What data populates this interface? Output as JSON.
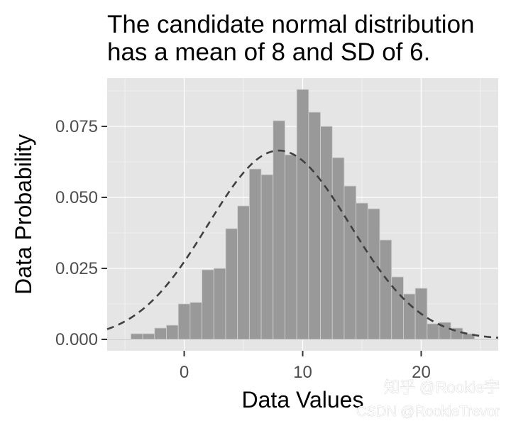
{
  "chart_data": {
    "type": "bar",
    "title_lines": [
      "The candidate normal distribution",
      "has a mean of 8 and SD of 6."
    ],
    "xlabel": "Data Values",
    "ylabel": "Data Probability",
    "xlim": [
      -6.5,
      26.5
    ],
    "ylim": [
      -0.004,
      0.092
    ],
    "x_ticks": [
      0,
      10,
      20
    ],
    "x_tick_labels": [
      "0",
      "10",
      "20"
    ],
    "y_ticks": [
      0.0,
      0.025,
      0.05,
      0.075
    ],
    "y_tick_labels": [
      "0.000",
      "0.025",
      "0.050",
      "0.075"
    ],
    "grid": true,
    "bin_width": 1,
    "bins": [
      {
        "x": -6,
        "y": 0.0
      },
      {
        "x": -5,
        "y": 0.0
      },
      {
        "x": -4,
        "y": 0.002
      },
      {
        "x": -3,
        "y": 0.002
      },
      {
        "x": -2,
        "y": 0.004
      },
      {
        "x": -1,
        "y": 0.005
      },
      {
        "x": 0,
        "y": 0.0125
      },
      {
        "x": 1,
        "y": 0.013
      },
      {
        "x": 2,
        "y": 0.0245
      },
      {
        "x": 3,
        "y": 0.025
      },
      {
        "x": 4,
        "y": 0.039
      },
      {
        "x": 5,
        "y": 0.047
      },
      {
        "x": 6,
        "y": 0.06
      },
      {
        "x": 7,
        "y": 0.058
      },
      {
        "x": 8,
        "y": 0.077
      },
      {
        "x": 9,
        "y": 0.065
      },
      {
        "x": 10,
        "y": 0.088
      },
      {
        "x": 11,
        "y": 0.08
      },
      {
        "x": 12,
        "y": 0.075
      },
      {
        "x": 13,
        "y": 0.064
      },
      {
        "x": 14,
        "y": 0.054
      },
      {
        "x": 15,
        "y": 0.048
      },
      {
        "x": 16,
        "y": 0.046
      },
      {
        "x": 17,
        "y": 0.035
      },
      {
        "x": 18,
        "y": 0.022
      },
      {
        "x": 19,
        "y": 0.016
      },
      {
        "x": 20,
        "y": 0.018
      },
      {
        "x": 21,
        "y": 0.0055
      },
      {
        "x": 22,
        "y": 0.006
      },
      {
        "x": 23,
        "y": 0.004
      },
      {
        "x": 24,
        "y": 0.002
      },
      {
        "x": 25,
        "y": 0.0
      },
      {
        "x": 26,
        "y": 0.0
      }
    ],
    "curve": {
      "distribution": "normal",
      "mean": 8,
      "sd": 6,
      "line_style": "dashed"
    }
  },
  "watermark": {
    "line1": "知乎 @Rookie宇",
    "line2": "CSDN @RookieTrevor"
  },
  "colors": {
    "panel_background": "#e5e5e5",
    "grid": "#ffffff",
    "bar_fill": "#999999",
    "bar_outline": "#d0d0d0",
    "curve": "#404040",
    "tick_text": "#4d4d4d",
    "tick_mark": "#333333"
  }
}
